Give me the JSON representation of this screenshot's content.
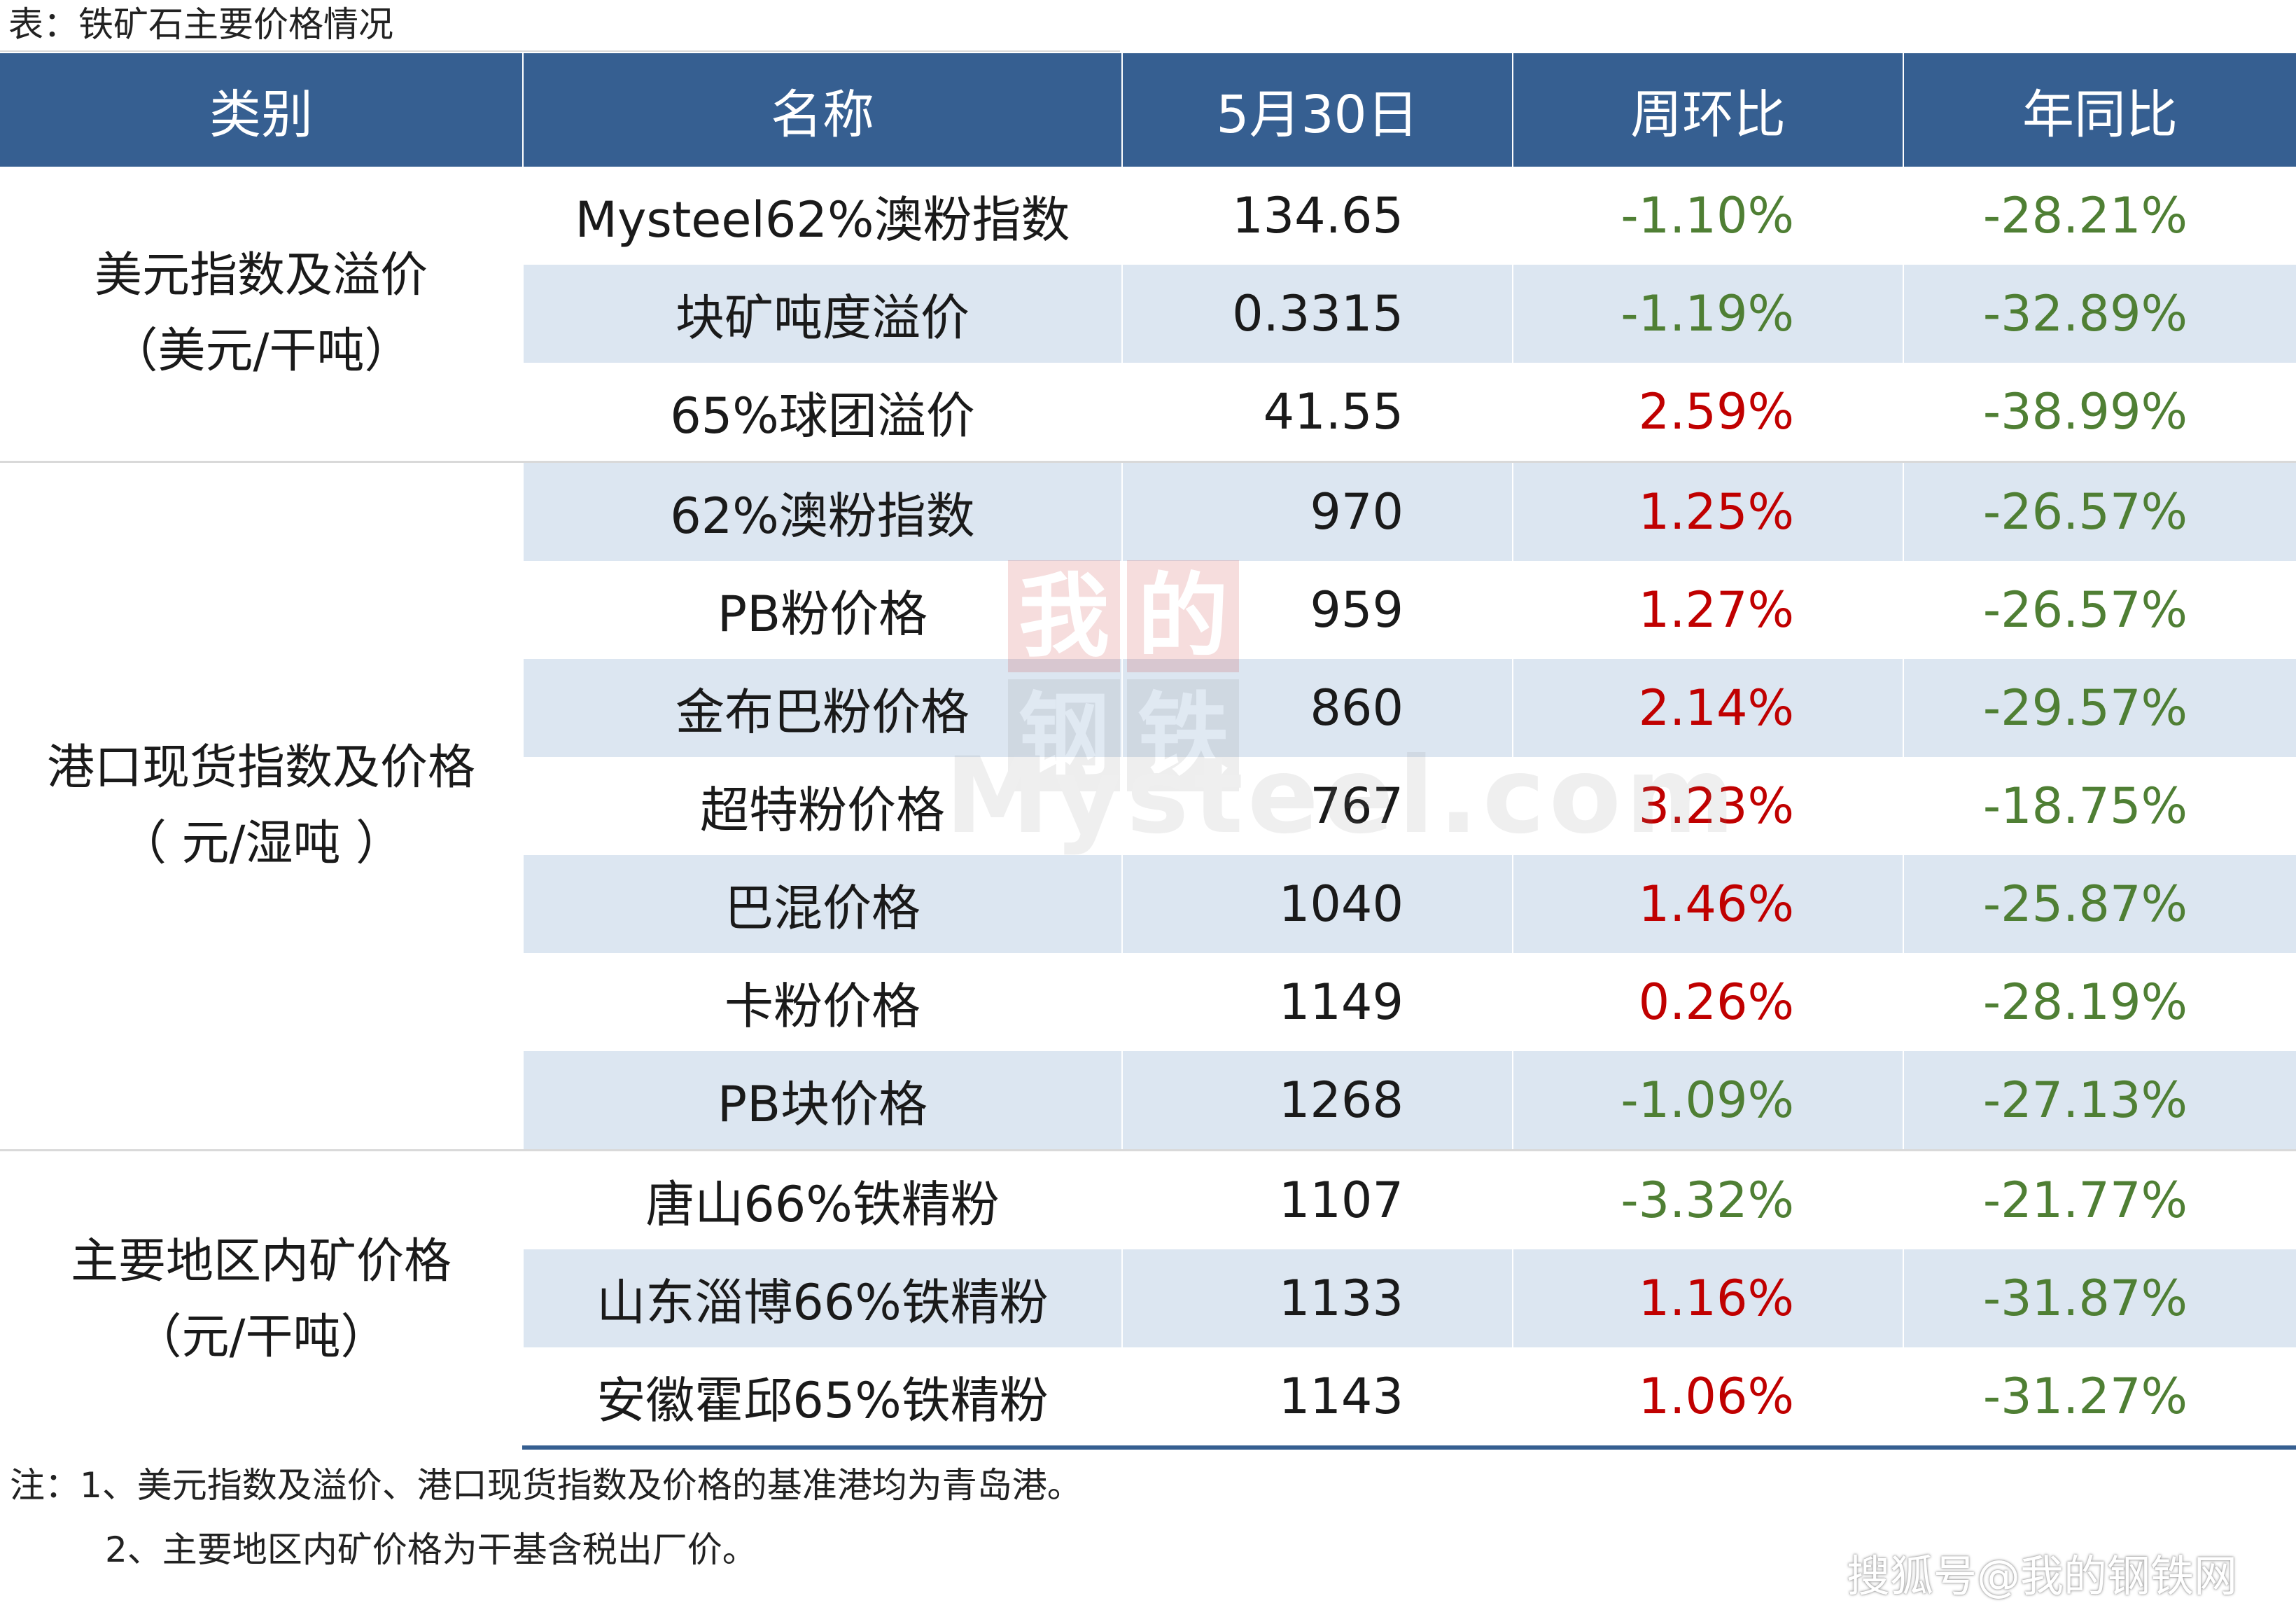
{
  "title": "表：铁矿石主要价格情况",
  "headers": [
    "类别",
    "名称",
    "5月30日",
    "周环比",
    "年同比"
  ],
  "groups": [
    {
      "label_line1": "美元指数及溢价",
      "label_line2": "（美元/干吨）",
      "rows": [
        {
          "name": "Mysteel62%澳粉指数",
          "price": "134.65",
          "wow": "-1.10%",
          "yoy": "-28.21%"
        },
        {
          "name": "块矿吨度溢价",
          "price": "0.3315",
          "wow": "-1.19%",
          "yoy": "-32.89%"
        },
        {
          "name": "65%球团溢价",
          "price": "41.55",
          "wow": "2.59%",
          "yoy": "-38.99%"
        }
      ]
    },
    {
      "label_line1": "港口现货指数及价格",
      "label_line2": "（ 元/湿吨 ）",
      "rows": [
        {
          "name": "62%澳粉指数",
          "price": "970",
          "wow": "1.25%",
          "yoy": "-26.57%"
        },
        {
          "name": "PB粉价格",
          "price": "959",
          "wow": "1.27%",
          "yoy": "-26.57%"
        },
        {
          "name": "金布巴粉价格",
          "price": "860",
          "wow": "2.14%",
          "yoy": "-29.57%"
        },
        {
          "name": "超特粉价格",
          "price": "767",
          "wow": "3.23%",
          "yoy": "-18.75%"
        },
        {
          "name": "巴混价格",
          "price": "1040",
          "wow": "1.46%",
          "yoy": "-25.87%"
        },
        {
          "name": "卡粉价格",
          "price": "1149",
          "wow": "0.26%",
          "yoy": "-28.19%"
        },
        {
          "name": "PB块价格",
          "price": "1268",
          "wow": "-1.09%",
          "yoy": "-27.13%"
        }
      ]
    },
    {
      "label_line1": "主要地区内矿价格",
      "label_line2": "（元/干吨）",
      "rows": [
        {
          "name": "唐山66%铁精粉",
          "price": "1107",
          "wow": "-3.32%",
          "yoy": "-21.77%"
        },
        {
          "name": "山东淄博66%铁精粉",
          "price": "1133",
          "wow": "1.16%",
          "yoy": "-31.87%"
        },
        {
          "name": "安徽霍邱65%铁精粉",
          "price": "1143",
          "wow": "1.06%",
          "yoy": "-31.27%"
        }
      ]
    }
  ],
  "colors": {
    "header_bg": "#365f91",
    "stripe": "#dce6f1",
    "negative": "#4f7f34",
    "positive": "#c00000"
  },
  "notes": [
    "注：1、美元指数及溢价、港口现货指数及价格的基准港均为青岛港。",
    "2、主要地区内矿价格为干基含税出厂价。"
  ],
  "watermark": {
    "chars": [
      "我",
      "的",
      "钢",
      "铁"
    ],
    "text": "Mysteel.com"
  },
  "source": "搜狐号@我的钢铁网"
}
